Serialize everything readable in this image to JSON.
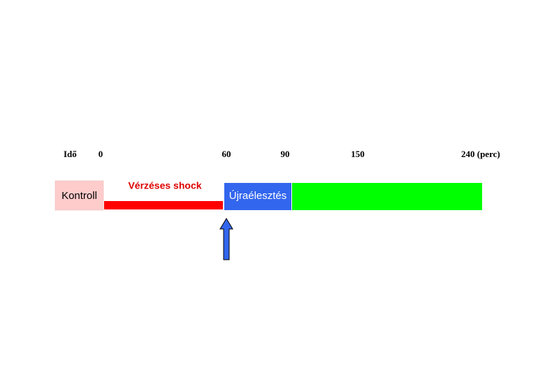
{
  "timeline": {
    "axis_label": "Idő",
    "ticks": [
      "0",
      "60",
      "90",
      "150",
      "240 (perc)"
    ]
  },
  "phases": [
    {
      "label": "Kontroll"
    },
    {
      "label": "Vérzéses shock"
    },
    {
      "label": "Újraélesztés"
    }
  ]
}
